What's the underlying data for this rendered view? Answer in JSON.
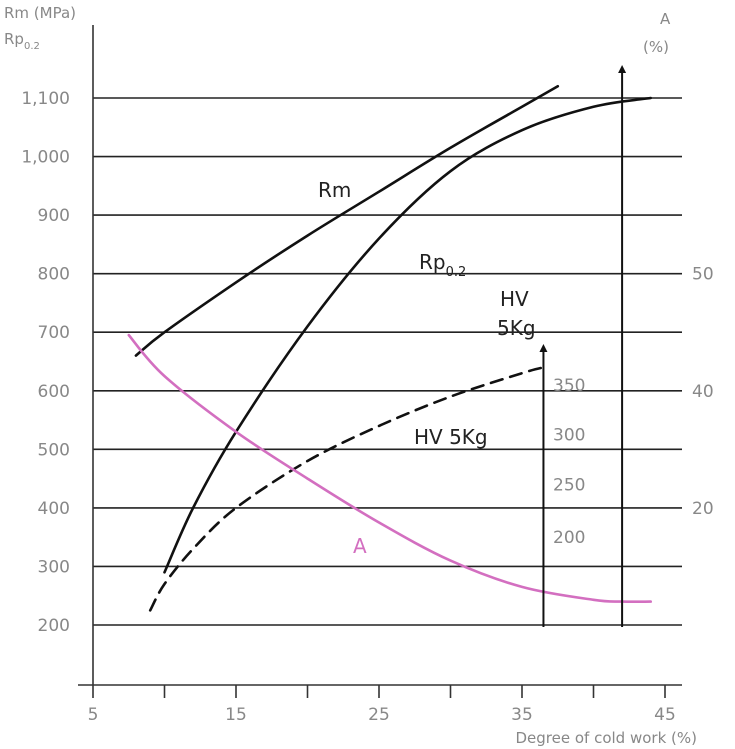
{
  "chart_data": {
    "type": "line",
    "title": "",
    "xlabel": "Degree of cold work (%)",
    "ylabel_left_line1": "Rm (MPa)",
    "ylabel_left_line2": "Rp0.2",
    "ylabel_right_line1": "A",
    "ylabel_right_line2": "(%)",
    "xlim": [
      5,
      45
    ],
    "ylim": [
      200,
      1100
    ],
    "x_ticks": [
      5,
      15,
      25,
      35,
      45
    ],
    "x_minor_ticks": [
      10,
      20,
      30,
      40
    ],
    "y_ticks": [
      "200",
      "300",
      "400",
      "500",
      "600",
      "700",
      "800",
      "900",
      "1,000",
      "1,100"
    ],
    "y_tick_values": [
      200,
      300,
      400,
      500,
      600,
      700,
      800,
      900,
      1000,
      1100
    ],
    "right_ticks": [
      {
        "label": "20",
        "at_mpa": 400
      },
      {
        "label": "40",
        "at_mpa": 600
      },
      {
        "label": "50",
        "at_mpa": 800
      }
    ],
    "hv_ticks": [
      {
        "label": "200",
        "at_mpa": 350
      },
      {
        "label": "250",
        "at_mpa": 440
      },
      {
        "label": "300",
        "at_mpa": 525
      },
      {
        "label": "350",
        "at_mpa": 610
      }
    ],
    "grid": true,
    "colors": {
      "strength": "#111111",
      "elongation": "#d36fc0",
      "text": "#888888"
    },
    "series": [
      {
        "name": "Rm",
        "color": "#111111",
        "dash": false,
        "x": [
          8,
          10,
          15,
          20,
          25,
          30,
          35,
          37.5
        ],
        "y": [
          660,
          700,
          785,
          865,
          940,
          1015,
          1085,
          1120
        ]
      },
      {
        "name": "Rp0.2",
        "color": "#111111",
        "dash": false,
        "x": [
          10,
          12,
          15,
          20,
          25,
          30,
          35,
          40,
          44
        ],
        "y": [
          290,
          400,
          530,
          710,
          860,
          975,
          1045,
          1085,
          1100
        ]
      },
      {
        "name": "HV 5Kg",
        "color": "#111111",
        "dash": true,
        "x": [
          9,
          10,
          12,
          15,
          20,
          25,
          30,
          35,
          36.5
        ],
        "y": [
          225,
          270,
          330,
          400,
          480,
          540,
          590,
          630,
          640
        ]
      },
      {
        "name": "A",
        "color": "#d36fc0",
        "dash": false,
        "x": [
          7.5,
          10,
          15,
          20,
          25,
          30,
          35,
          40,
          42,
          44
        ],
        "y": [
          695,
          625,
          530,
          450,
          375,
          310,
          265,
          243,
          240,
          240
        ]
      }
    ],
    "labels": {
      "rm": "Rm",
      "rp_main": "Rp",
      "rp_sub": "0.2",
      "hv_top_line1": "HV",
      "hv_top_line2": "5Kg",
      "hv_mid": "HV 5Kg",
      "a": "A"
    }
  }
}
